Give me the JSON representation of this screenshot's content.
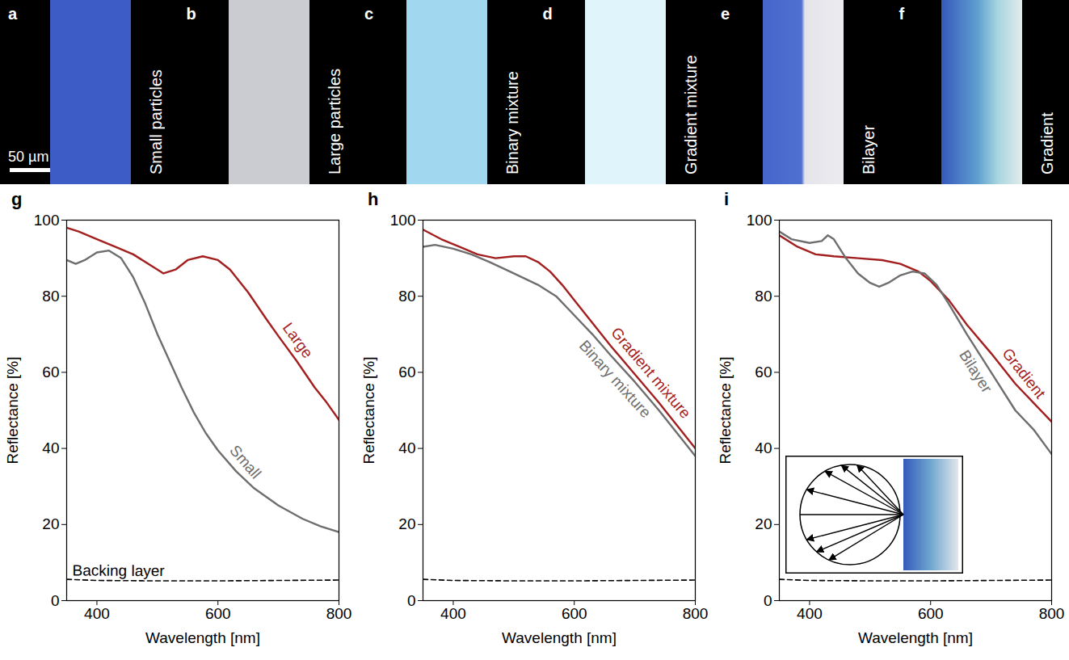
{
  "panels": [
    {
      "letter": "a",
      "label": "Small particles"
    },
    {
      "letter": "b",
      "label": "Large particles"
    },
    {
      "letter": "c",
      "label": "Binary mixture"
    },
    {
      "letter": "d",
      "label": "Gradient mixture"
    },
    {
      "letter": "e",
      "label": "Bilayer"
    },
    {
      "letter": "f",
      "label": "Gradient"
    }
  ],
  "scale_bar": "50 µm",
  "chart_data": [
    {
      "letter": "g",
      "type": "line",
      "xlabel": "Wavelength [nm]",
      "ylabel": "Reflectance [%]",
      "xlim": [
        350,
        800
      ],
      "xticks": [
        400,
        600,
        800
      ],
      "ylim": [
        0,
        100
      ],
      "yticks": [
        0,
        20,
        40,
        60,
        80,
        100
      ],
      "series": [
        {
          "name": "Large",
          "color": "#a31f1f",
          "line_style": "solid",
          "x": [
            350,
            370,
            400,
            430,
            460,
            490,
            510,
            530,
            550,
            575,
            600,
            620,
            650,
            680,
            700,
            730,
            760,
            780,
            800
          ],
          "values": [
            98,
            97,
            95,
            93,
            91,
            88,
            86,
            87,
            89.5,
            90.5,
            89.5,
            87,
            81,
            74,
            69.5,
            63,
            56,
            52,
            47.5
          ]
        },
        {
          "name": "Small",
          "color": "#6e6e6e",
          "line_style": "solid",
          "x": [
            350,
            365,
            380,
            400,
            420,
            440,
            460,
            480,
            500,
            520,
            540,
            560,
            580,
            600,
            630,
            660,
            700,
            740,
            770,
            800
          ],
          "values": [
            89.5,
            88.5,
            89.5,
            91.5,
            92,
            90,
            85,
            78,
            70,
            63,
            56,
            49.5,
            44,
            39.5,
            34,
            29.5,
            25,
            21.5,
            19.5,
            18
          ]
        },
        {
          "name": "Backing layer",
          "color": "#000000",
          "line_style": "dashed",
          "x": [
            350,
            400,
            500,
            600,
            700,
            800
          ],
          "values": [
            5.6,
            5.3,
            5.2,
            5.2,
            5.3,
            5.4
          ]
        }
      ]
    },
    {
      "letter": "h",
      "type": "line",
      "xlabel": "Wavelength [nm]",
      "ylabel": "Reflectance [%]",
      "xlim": [
        350,
        800
      ],
      "xticks": [
        400,
        600,
        800
      ],
      "ylim": [
        0,
        100
      ],
      "yticks": [
        0,
        20,
        40,
        60,
        80,
        100
      ],
      "series": [
        {
          "name": "Gradient mixture",
          "color": "#a31f1f",
          "line_style": "solid",
          "x": [
            350,
            380,
            410,
            440,
            470,
            500,
            520,
            540,
            560,
            580,
            600,
            630,
            660,
            700,
            740,
            770,
            800
          ],
          "values": [
            97.5,
            95,
            93,
            91,
            90,
            90.5,
            90.5,
            89,
            86.5,
            83,
            79,
            73,
            67,
            59.5,
            52,
            46,
            40
          ]
        },
        {
          "name": "Binary mixture",
          "color": "#6e6e6e",
          "line_style": "solid",
          "x": [
            350,
            370,
            400,
            430,
            460,
            500,
            540,
            570,
            600,
            630,
            660,
            700,
            740,
            770,
            800
          ],
          "values": [
            93,
            93.5,
            92.5,
            91,
            89,
            86,
            83,
            80,
            75,
            70,
            64.5,
            57.5,
            50,
            44,
            38
          ]
        },
        {
          "color": "#000000",
          "line_style": "dashed",
          "x": [
            350,
            400,
            500,
            600,
            700,
            800
          ],
          "values": [
            5.6,
            5.3,
            5.2,
            5.2,
            5.3,
            5.4
          ]
        }
      ]
    },
    {
      "letter": "i",
      "type": "line",
      "xlabel": "Wavelength [nm]",
      "ylabel": "Reflectance [%]",
      "xlim": [
        350,
        800
      ],
      "xticks": [
        400,
        600,
        800
      ],
      "ylim": [
        0,
        100
      ],
      "yticks": [
        0,
        20,
        40,
        60,
        80,
        100
      ],
      "series": [
        {
          "name": "Gradient",
          "color": "#a31f1f",
          "line_style": "solid",
          "x": [
            350,
            380,
            410,
            440,
            480,
            520,
            550,
            580,
            600,
            630,
            660,
            700,
            740,
            770,
            800
          ],
          "values": [
            96,
            93,
            91,
            90.5,
            90,
            89.5,
            88.5,
            86.5,
            84,
            79,
            72.5,
            65,
            57,
            52,
            47
          ]
        },
        {
          "name": "Bilayer",
          "color": "#6e6e6e",
          "line_style": "solid",
          "x": [
            350,
            370,
            400,
            420,
            430,
            440,
            460,
            480,
            500,
            515,
            530,
            550,
            570,
            590,
            610,
            630,
            660,
            700,
            740,
            770,
            800
          ],
          "values": [
            97,
            95,
            94,
            94.5,
            96,
            95,
            90,
            86,
            83.5,
            82.5,
            83.5,
            85.5,
            86.5,
            86,
            83,
            78,
            70,
            60,
            50,
            45,
            38.5
          ]
        },
        {
          "color": "#000000",
          "line_style": "dashed",
          "x": [
            350,
            400,
            500,
            600,
            700,
            800
          ],
          "values": [
            5.6,
            5.3,
            5.2,
            5.2,
            5.3,
            5.4
          ]
        }
      ]
    }
  ]
}
